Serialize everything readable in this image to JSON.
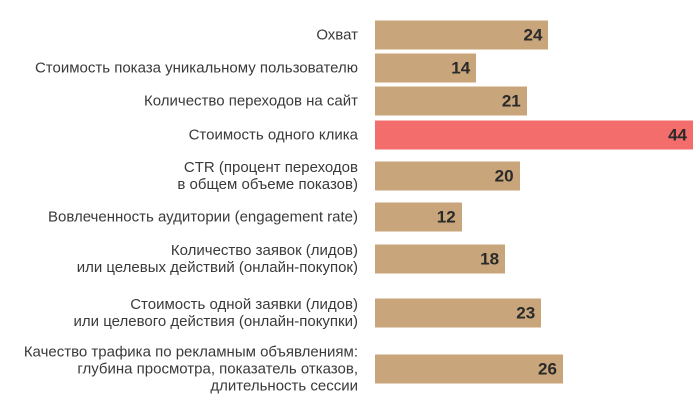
{
  "chart_data": {
    "type": "bar",
    "orientation": "horizontal",
    "categories": [
      "Охват",
      "Стоимость показа уникальному пользователю",
      "Количество переходов на сайт",
      "Стоимость одного клика",
      "CTR (процент переходов\nв общем объеме показов)",
      "Вовлеченность аудитории (engagement rate)",
      "Количество заявок (лидов)\nили целевых действий (онлайн-покупок)",
      "Стоимость одной заявки (лидов)\nили целевого действия (онлайн-покупки)",
      "Качество трафика по рекламным объявлениям:\nглубина просмотра, показатель отказов,\nдлительность сессии"
    ],
    "values": [
      24,
      14,
      21,
      44,
      20,
      12,
      18,
      23,
      26
    ],
    "colors": [
      "#c8a57b",
      "#c8a57b",
      "#c8a57b",
      "#f26d6b",
      "#c8a57b",
      "#c8a57b",
      "#c8a57b",
      "#c8a57b",
      "#c8a57b"
    ]
  }
}
